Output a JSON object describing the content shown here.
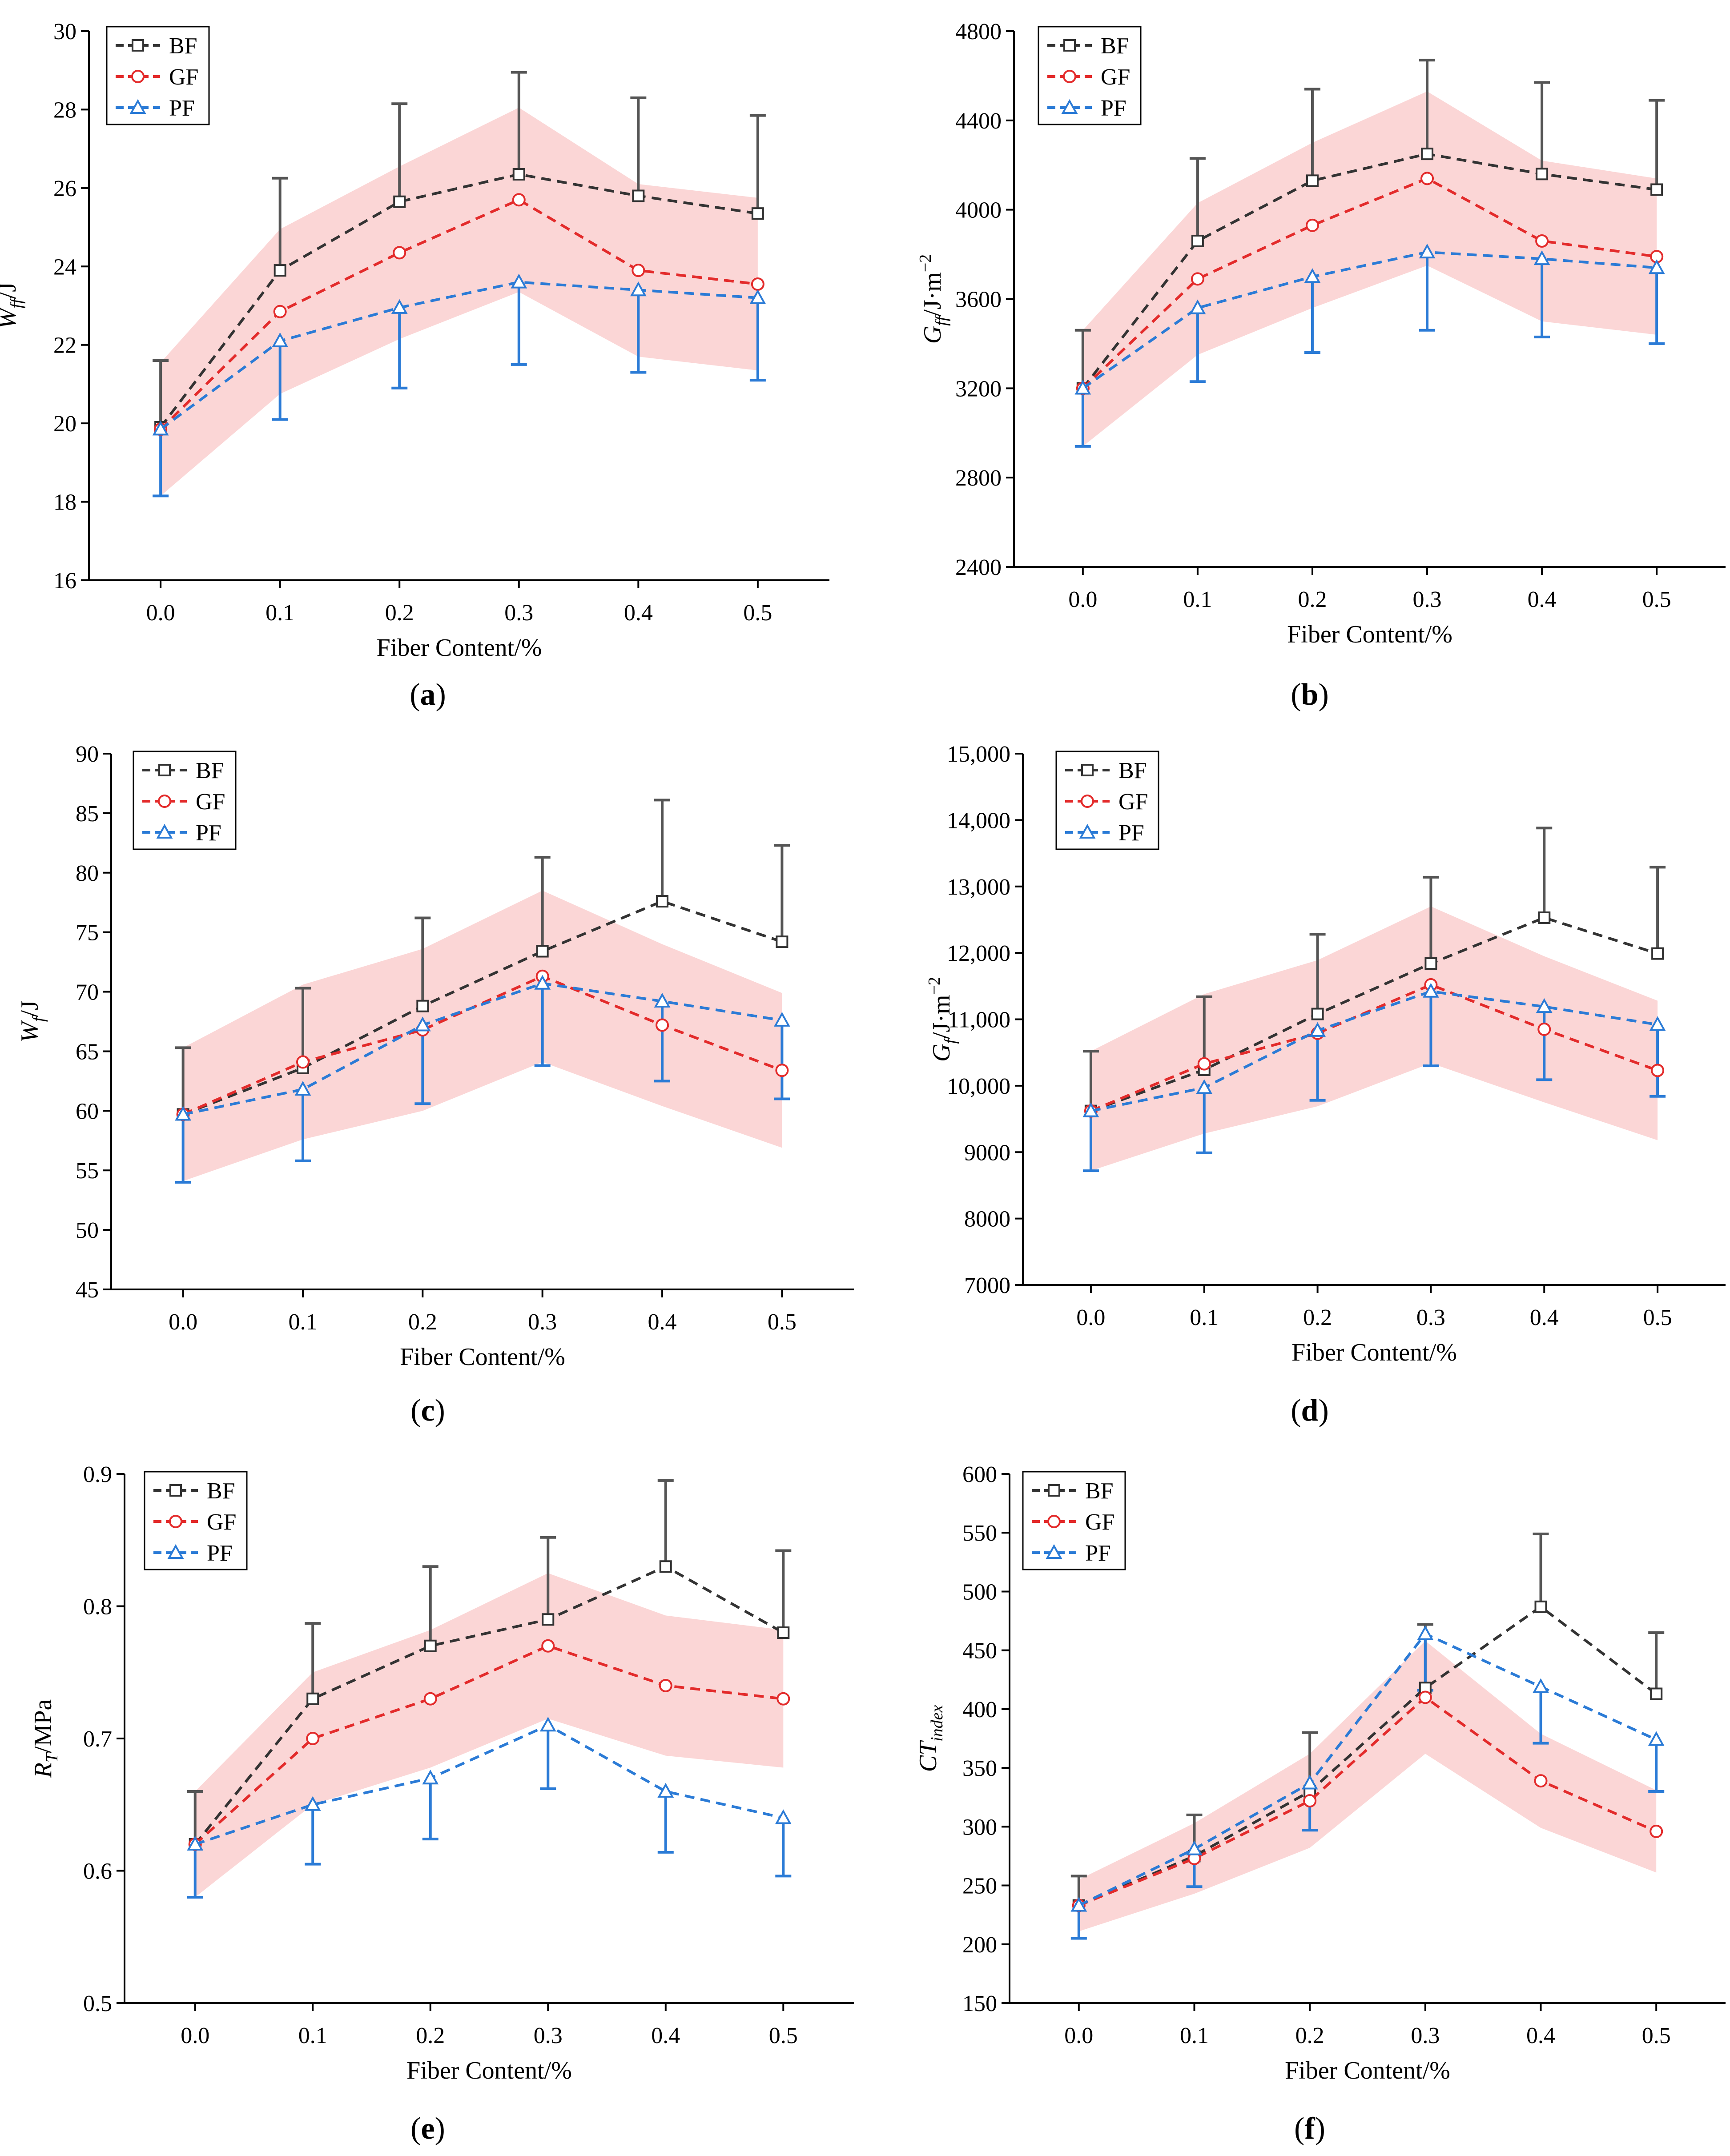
{
  "colors": {
    "BF": "#333333",
    "GF": "#e32b2b",
    "PF": "#2b7bd6",
    "BF_error": "#555555",
    "PF_error": "#2b7bd6",
    "band": "#f9c4c4"
  },
  "chart_data": [
    {
      "id": "a",
      "type": "line",
      "caption_letter": "a",
      "xlabel": "Fiber Content/%",
      "ylabel": "W",
      "ylabel_sub": "ff",
      "ylabel_unit": "/J",
      "x": [
        0.0,
        0.1,
        0.2,
        0.3,
        0.4,
        0.5
      ],
      "x_tick_labels": [
        "0.0",
        "0.1",
        "0.2",
        "0.3",
        "0.4",
        "0.5"
      ],
      "ylim": [
        16,
        30
      ],
      "y_ticks": [
        16,
        18,
        20,
        22,
        24,
        26,
        28,
        30
      ],
      "y_tick_labels": [
        "16",
        "18",
        "20",
        "22",
        "24",
        "26",
        "28",
        "30"
      ],
      "legend_position": "top-left",
      "series": [
        {
          "name": "BF",
          "marker": "square",
          "values": [
            19.9,
            23.9,
            25.65,
            26.35,
            25.8,
            25.35
          ],
          "error_up": [
            1.7,
            2.35,
            2.5,
            2.6,
            2.5,
            2.5
          ]
        },
        {
          "name": "GF",
          "marker": "circle",
          "values": [
            19.85,
            22.85,
            24.35,
            25.7,
            23.9,
            23.55
          ],
          "band": [
            1.7,
            2.1,
            2.2,
            2.35,
            2.2,
            2.2
          ]
        },
        {
          "name": "PF",
          "marker": "triangle",
          "values": [
            19.85,
            22.1,
            22.95,
            23.6,
            23.4,
            23.2
          ],
          "error_down": [
            1.7,
            2.0,
            2.05,
            2.1,
            2.1,
            2.1
          ]
        }
      ]
    },
    {
      "id": "b",
      "type": "line",
      "caption_letter": "b",
      "xlabel": "Fiber Content/%",
      "ylabel": "G",
      "ylabel_sub": "ff",
      "ylabel_unit": "/J·m",
      "ylabel_sup": "−2",
      "x": [
        0.0,
        0.1,
        0.2,
        0.3,
        0.4,
        0.5
      ],
      "x_tick_labels": [
        "0.0",
        "0.1",
        "0.2",
        "0.3",
        "0.4",
        "0.5"
      ],
      "ylim": [
        2400,
        4800
      ],
      "y_ticks": [
        2400,
        2800,
        3200,
        3600,
        4000,
        4400,
        4800
      ],
      "y_tick_labels": [
        "2400",
        "2800",
        "3200",
        "3600",
        "4000",
        "4400",
        "4800"
      ],
      "legend_position": "top-left",
      "series": [
        {
          "name": "BF",
          "marker": "square",
          "values": [
            3200,
            3860,
            4130,
            4250,
            4160,
            4090
          ],
          "error_up": [
            260,
            370,
            410,
            420,
            410,
            400
          ]
        },
        {
          "name": "GF",
          "marker": "circle",
          "values": [
            3200,
            3690,
            3930,
            4140,
            3860,
            3790
          ],
          "band": [
            260,
            340,
            370,
            390,
            360,
            350
          ]
        },
        {
          "name": "PF",
          "marker": "triangle",
          "values": [
            3200,
            3560,
            3700,
            3810,
            3780,
            3740
          ],
          "error_down": [
            260,
            330,
            340,
            350,
            350,
            340
          ]
        }
      ]
    },
    {
      "id": "c",
      "type": "line",
      "caption_letter": "c",
      "xlabel": "Fiber Content/%",
      "ylabel": "W",
      "ylabel_sub": "f",
      "ylabel_unit": "/J",
      "x": [
        0.0,
        0.1,
        0.2,
        0.3,
        0.4,
        0.5
      ],
      "x_tick_labels": [
        "0.0",
        "0.1",
        "0.2",
        "0.3",
        "0.4",
        "0.5"
      ],
      "ylim": [
        45,
        90
      ],
      "y_ticks": [
        45,
        50,
        55,
        60,
        65,
        70,
        75,
        80,
        85,
        90
      ],
      "y_tick_labels": [
        "45",
        "50",
        "55",
        "60",
        "65",
        "70",
        "75",
        "80",
        "85",
        "90"
      ],
      "legend_position": "top-left",
      "series": [
        {
          "name": "BF",
          "marker": "square",
          "values": [
            59.7,
            63.6,
            68.8,
            73.4,
            77.6,
            74.2
          ],
          "error_up": [
            5.6,
            6.7,
            7.4,
            7.9,
            8.5,
            8.1
          ]
        },
        {
          "name": "GF",
          "marker": "circle",
          "values": [
            59.7,
            64.1,
            66.8,
            71.3,
            67.2,
            63.4
          ],
          "band": [
            5.6,
            6.5,
            6.8,
            7.2,
            6.8,
            6.5
          ]
        },
        {
          "name": "PF",
          "marker": "triangle",
          "values": [
            59.7,
            61.8,
            67.2,
            70.7,
            69.2,
            67.6
          ],
          "error_down": [
            5.7,
            6.0,
            6.6,
            6.9,
            6.7,
            6.6
          ]
        }
      ]
    },
    {
      "id": "d",
      "type": "line",
      "caption_letter": "d",
      "xlabel": "Fiber Content/%",
      "ylabel": "G",
      "ylabel_sub": "f",
      "ylabel_unit": "/J·m",
      "ylabel_sup": "−2",
      "x": [
        0.0,
        0.1,
        0.2,
        0.3,
        0.4,
        0.5
      ],
      "x_tick_labels": [
        "0.0",
        "0.1",
        "0.2",
        "0.3",
        "0.4",
        "0.5"
      ],
      "ylim": [
        7000,
        15000
      ],
      "y_ticks": [
        7000,
        8000,
        9000,
        10000,
        11000,
        12000,
        13000,
        14000,
        15000
      ],
      "y_tick_labels": [
        "7000",
        "8000",
        "9000",
        "10,000",
        "11,000",
        "12,000",
        "13,000",
        "14,000",
        "15,000"
      ],
      "legend_position": "top-left",
      "series": [
        {
          "name": "BF",
          "marker": "square",
          "values": [
            9620,
            10240,
            11080,
            11840,
            12530,
            11990
          ],
          "error_up": [
            900,
            1100,
            1200,
            1300,
            1350,
            1300
          ]
        },
        {
          "name": "GF",
          "marker": "circle",
          "values": [
            9620,
            10330,
            10790,
            11520,
            10850,
            10230
          ],
          "band": [
            900,
            1050,
            1100,
            1180,
            1100,
            1050
          ]
        },
        {
          "name": "PF",
          "marker": "triangle",
          "values": [
            9620,
            9970,
            10830,
            11420,
            11190,
            10920
          ],
          "error_down": [
            900,
            980,
            1050,
            1120,
            1100,
            1080
          ]
        }
      ]
    },
    {
      "id": "e",
      "type": "line",
      "caption_letter": "e",
      "xlabel": "Fiber Content/%",
      "ylabel": "R",
      "ylabel_sub": "T",
      "ylabel_unit": "/MPa",
      "x": [
        0.0,
        0.1,
        0.2,
        0.3,
        0.4,
        0.5
      ],
      "x_tick_labels": [
        "0.0",
        "0.1",
        "0.2",
        "0.3",
        "0.4",
        "0.5"
      ],
      "ylim": [
        0.5,
        0.9
      ],
      "y_ticks": [
        0.5,
        0.6,
        0.7,
        0.8,
        0.9
      ],
      "y_tick_labels": [
        "0.5",
        "0.6",
        "0.7",
        "0.8",
        "0.9"
      ],
      "legend_position": "top-left",
      "series": [
        {
          "name": "BF",
          "marker": "square",
          "values": [
            0.62,
            0.73,
            0.77,
            0.79,
            0.83,
            0.78
          ],
          "error_up": [
            0.04,
            0.057,
            0.06,
            0.062,
            0.065,
            0.062
          ]
        },
        {
          "name": "GF",
          "marker": "circle",
          "values": [
            0.62,
            0.7,
            0.73,
            0.77,
            0.74,
            0.73
          ],
          "band": [
            0.04,
            0.05,
            0.052,
            0.055,
            0.053,
            0.052
          ]
        },
        {
          "name": "PF",
          "marker": "triangle",
          "values": [
            0.62,
            0.65,
            0.67,
            0.71,
            0.66,
            0.64
          ],
          "error_down": [
            0.04,
            0.045,
            0.046,
            0.048,
            0.046,
            0.044
          ]
        }
      ]
    },
    {
      "id": "f",
      "type": "line",
      "caption_letter": "f",
      "xlabel": "Fiber Content/%",
      "ylabel": "CT",
      "ylabel_sub": "index",
      "ylabel_unit": "",
      "x": [
        0.0,
        0.1,
        0.2,
        0.3,
        0.4,
        0.5
      ],
      "x_tick_labels": [
        "0.0",
        "0.1",
        "0.2",
        "0.3",
        "0.4",
        "0.5"
      ],
      "ylim": [
        150,
        600
      ],
      "y_ticks": [
        150,
        200,
        250,
        300,
        350,
        400,
        450,
        500,
        550,
        600
      ],
      "y_tick_labels": [
        "150",
        "200",
        "250",
        "300",
        "350",
        "400",
        "450",
        "500",
        "550",
        "600"
      ],
      "legend_position": "top-left",
      "series": [
        {
          "name": "BF",
          "marker": "square",
          "values": [
            233,
            275,
            330,
            418,
            487,
            413
          ],
          "error_up": [
            25,
            35,
            50,
            54,
            62,
            52
          ]
        },
        {
          "name": "GF",
          "marker": "circle",
          "values": [
            233,
            273,
            322,
            410,
            339,
            296
          ],
          "band": [
            22,
            30,
            40,
            48,
            40,
            35
          ]
        },
        {
          "name": "PF",
          "marker": "triangle",
          "values": [
            233,
            281,
            337,
            464,
            419,
            374
          ],
          "error_down": [
            28,
            32,
            40,
            48,
            48,
            44
          ]
        }
      ]
    }
  ]
}
